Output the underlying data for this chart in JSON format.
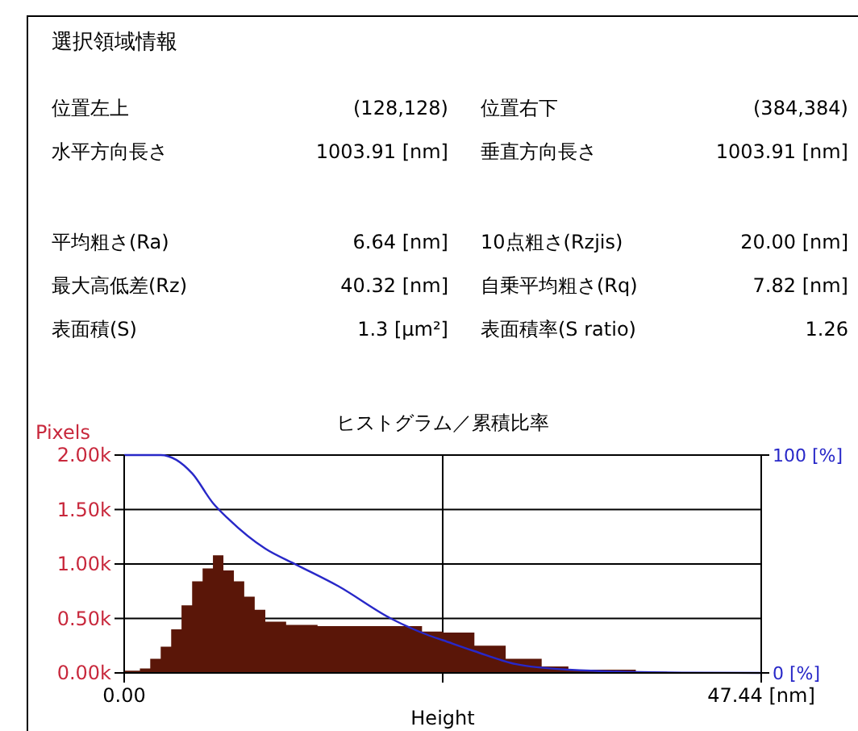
{
  "chart_data": {
    "type": "area",
    "title": "ヒストグラム／累積比率",
    "xlabel": "Height",
    "ylabel": "Pixels",
    "annotations": [
      "選択領域情報",
      "位置左上",
      "(128,128)",
      "位置右下",
      "(384,384)",
      "水平方向長さ",
      "1003.91 [nm]",
      "垂直方向長さ",
      "1003.91 [nm]",
      "平均粗さ(Ra)",
      "6.64 [nm]",
      "10点粗さ(Rzjis)",
      "20.00 [nm]",
      "最大高低差(Rz)",
      "40.32 [nm]",
      "自乗平均粗さ(Rq)",
      "7.82 [nm]",
      "表面積(S)",
      "1.3 [µm²]",
      "表面積率(S ratio)",
      "1.26"
    ],
    "xlim": [
      0,
      47.44
    ],
    "xticks": [
      {
        "value": 0,
        "label": "0.00"
      },
      {
        "value": 23.72,
        "label": null
      },
      {
        "value": 47.44,
        "label": "47.44 [nm]"
      }
    ],
    "ylim": [
      0,
      2000
    ],
    "yticks": [
      {
        "value": 0,
        "label": "0.00k"
      },
      {
        "value": 500,
        "label": "0.50k"
      },
      {
        "value": 1000,
        "label": "1.00k"
      },
      {
        "value": 1500,
        "label": "1.50k"
      },
      {
        "value": 2000,
        "label": "2.00k"
      }
    ],
    "y2lim": [
      0,
      100
    ],
    "y2ticks": [
      {
        "value": 0,
        "label": "0 [%]"
      },
      {
        "value": 100,
        "label": "100 [%]"
      }
    ],
    "grid": true,
    "series": [
      {
        "color": "#5a1608",
        "x": [
          0,
          1.17,
          1.94,
          2.72,
          3.5,
          4.27,
          5.06,
          5.84,
          6.61,
          7.39,
          8.17,
          8.94,
          9.72,
          10.51,
          12.06,
          14.4,
          18.29,
          22.18,
          23.74,
          26.08,
          28.41,
          31.09,
          33.08,
          38.1,
          40.43,
          47.44
        ],
        "values": [
          20,
          40,
          130,
          240,
          400,
          620,
          840,
          960,
          1080,
          940,
          840,
          700,
          580,
          470,
          440,
          430,
          430,
          380,
          370,
          250,
          130,
          60,
          30,
          10,
          0,
          0
        ]
      },
      {
        "type": "line",
        "axis": "y2",
        "color": "#2828c8",
        "x": [
          0,
          2.72,
          5.06,
          6.61,
          7.78,
          10.51,
          12.84,
          15.95,
          19.85,
          22.57,
          23.74,
          26.08,
          29.19,
          33.08,
          40.43,
          47.44
        ],
        "values": [
          100,
          100,
          91.6,
          78,
          70.6,
          57,
          49.6,
          39.8,
          25,
          17.5,
          15,
          10,
          4,
          1.5,
          0.2,
          0
        ]
      }
    ]
  }
}
